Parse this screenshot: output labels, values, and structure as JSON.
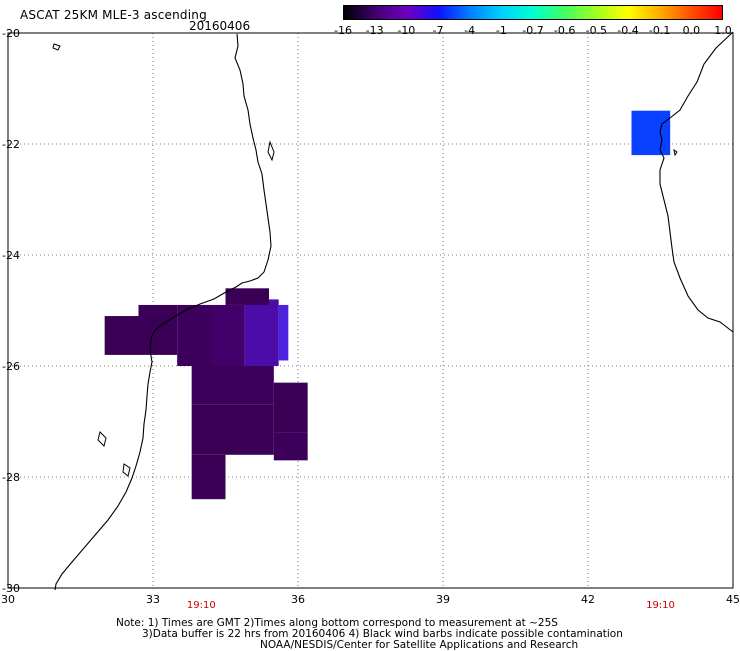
{
  "title": "ASCAT 25KM MLE-3 ascending",
  "date": "20160406",
  "colorbar": {
    "labels": [
      "-16",
      "-13",
      "-10",
      "-7",
      "-4",
      "-1",
      "-0.7",
      "-0.6",
      "-0.5",
      "-0.4",
      "-0.1",
      "0.0",
      "1.0"
    ],
    "gradient_colors": [
      "#000000",
      "#400070",
      "#7000c0",
      "#1010ff",
      "#0080ff",
      "#00d0ff",
      "#00ffd0",
      "#40ff60",
      "#a0ff20",
      "#ffff00",
      "#ffb000",
      "#ff5000",
      "#ff0000"
    ]
  },
  "axes": {
    "x_labels": [
      "30",
      "33",
      "36",
      "39",
      "42",
      "45"
    ],
    "y_labels": [
      "-20",
      "-22",
      "-24",
      "-26",
      "-28",
      "-30"
    ],
    "x_range": [
      30,
      45
    ],
    "y_range": [
      -30,
      -20
    ],
    "grid": "dotted"
  },
  "time_labels": [
    {
      "text": "19:10",
      "lon": 34,
      "color": "#cc0000"
    },
    {
      "text": "19:10",
      "lon": 43.5,
      "color": "#cc0000"
    }
  ],
  "swath_cells": [
    {
      "lon0": 32.0,
      "lon1": 32.7,
      "lat0": -25.1,
      "lat1": -25.8,
      "color": "#3a0056"
    },
    {
      "lon0": 32.7,
      "lon1": 33.5,
      "lat0": -24.9,
      "lat1": -25.8,
      "color": "#3a0056"
    },
    {
      "lon0": 33.5,
      "lon1": 34.2,
      "lat0": -24.9,
      "lat1": -26.0,
      "color": "#3d005c"
    },
    {
      "lon0": 34.2,
      "lon1": 34.9,
      "lat0": -24.9,
      "lat1": -26.0,
      "color": "#42006a"
    },
    {
      "lon0": 34.9,
      "lon1": 35.6,
      "lat0": -24.8,
      "lat1": -26.0,
      "color": "#4c0ca8"
    },
    {
      "lon0": 35.6,
      "lon1": 35.8,
      "lat0": -24.9,
      "lat1": -25.9,
      "color": "#4a22e0"
    },
    {
      "lon0": 34.5,
      "lon1": 35.4,
      "lat0": -24.6,
      "lat1": -24.9,
      "color": "#3a0056"
    },
    {
      "lon0": 33.8,
      "lon1": 35.5,
      "lat0": -26.0,
      "lat1": -26.7,
      "color": "#3c005a"
    },
    {
      "lon0": 35.5,
      "lon1": 36.2,
      "lat0": -26.3,
      "lat1": -27.2,
      "color": "#3a0056"
    },
    {
      "lon0": 33.8,
      "lon1": 35.5,
      "lat0": -26.7,
      "lat1": -27.6,
      "color": "#3a0056"
    },
    {
      "lon0": 35.5,
      "lon1": 36.2,
      "lat0": -27.2,
      "lat1": -27.7,
      "color": "#3c005a"
    },
    {
      "lon0": 33.8,
      "lon1": 34.5,
      "lat0": -27.6,
      "lat1": -28.4,
      "color": "#3a0056"
    },
    {
      "lon0": 42.9,
      "lon1": 43.7,
      "lat0": -21.4,
      "lat1": -22.2,
      "color": "#0a40ff"
    }
  ],
  "notes": [
    "Note: 1) Times are GMT 2)Times along bottom correspond to measurement at ~25S",
    "3)Data buffer is 22 hrs from 20160406 4) Black wind barbs indicate possible contamination",
    "NOAA/NESDIS/Center for Satellite Applications and Research"
  ]
}
